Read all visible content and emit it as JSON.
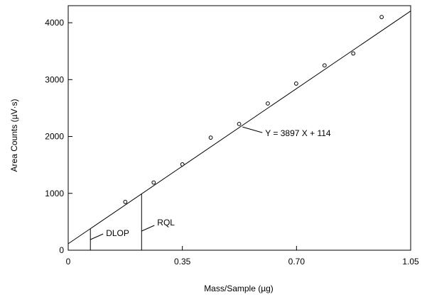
{
  "chart_data": {
    "type": "scatter",
    "xlabel": "Mass/Sample (µg)",
    "ylabel": "Area Counts (µV·s)",
    "xlim": [
      0,
      1.05
    ],
    "ylim": [
      0,
      4300
    ],
    "x_ticks": [
      {
        "value": 0,
        "label": "0"
      },
      {
        "value": 0.35,
        "label": "0.35"
      },
      {
        "value": 0.7,
        "label": "0.70"
      },
      {
        "value": 1.05,
        "label": "1.05"
      }
    ],
    "y_ticks": [
      {
        "value": 0,
        "label": "0"
      },
      {
        "value": 1000,
        "label": "1000"
      },
      {
        "value": 2000,
        "label": "2000"
      },
      {
        "value": 3000,
        "label": "3000"
      },
      {
        "value": 4000,
        "label": "4000"
      }
    ],
    "points": [
      {
        "x": 0.175,
        "y": 850
      },
      {
        "x": 0.262,
        "y": 1190
      },
      {
        "x": 0.35,
        "y": 1510
      },
      {
        "x": 0.437,
        "y": 1980
      },
      {
        "x": 0.524,
        "y": 2220
      },
      {
        "x": 0.612,
        "y": 2580
      },
      {
        "x": 0.699,
        "y": 2930
      },
      {
        "x": 0.786,
        "y": 3250
      },
      {
        "x": 0.874,
        "y": 3460
      },
      {
        "x": 0.961,
        "y": 4100
      }
    ],
    "fit": {
      "slope": 3897,
      "intercept": 114,
      "x_range": [
        0,
        1.05
      ],
      "label": "Y = 3897 X + 114",
      "anchor_x": 0.53
    },
    "markers": [
      {
        "name": "DLOP",
        "label": "DLOP",
        "x": 0.068
      },
      {
        "name": "RQL",
        "label": "RQL",
        "x": 0.225
      }
    ]
  }
}
